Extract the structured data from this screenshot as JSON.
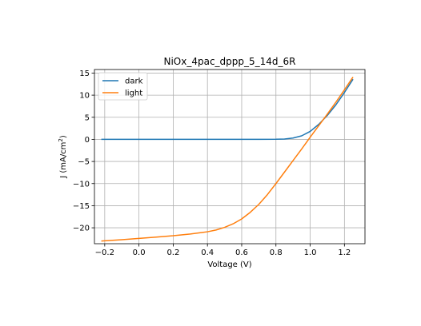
{
  "chart_data": {
    "type": "line",
    "title": "NiOx_4pac_dppp_5_14d_6R",
    "xlabel": "Voltage (V)",
    "ylabel_prefix": "J (mA/cm",
    "ylabel_sup": "2",
    "ylabel_suffix": ")",
    "xlim": [
      -0.26,
      1.32
    ],
    "ylim": [
      -23.6,
      15.8
    ],
    "xticks": [
      -0.2,
      0.0,
      0.2,
      0.4,
      0.6,
      0.8,
      1.0,
      1.2
    ],
    "xtick_labels": [
      "−0.2",
      "0.0",
      "0.2",
      "0.4",
      "0.6",
      "0.8",
      "1.0",
      "1.2"
    ],
    "yticks": [
      -20,
      -15,
      -10,
      -5,
      0,
      5,
      10,
      15
    ],
    "ytick_labels": [
      "−20",
      "−15",
      "−10",
      "−5",
      "0",
      "5",
      "10",
      "15"
    ],
    "grid": true,
    "legend_position": "top-left",
    "series": [
      {
        "name": "dark",
        "color": "#1f77b4",
        "x": [
          -0.22,
          0.0,
          0.2,
          0.4,
          0.6,
          0.7,
          0.8,
          0.85,
          0.9,
          0.95,
          1.0,
          1.05,
          1.1,
          1.15,
          1.2,
          1.25
        ],
        "y": [
          0.0,
          0.0,
          0.0,
          0.0,
          0.0,
          0.0,
          0.02,
          0.08,
          0.3,
          0.8,
          1.8,
          3.4,
          5.4,
          7.8,
          10.6,
          13.6
        ]
      },
      {
        "name": "light",
        "color": "#ff7f0e",
        "x": [
          -0.22,
          -0.1,
          0.0,
          0.1,
          0.2,
          0.3,
          0.4,
          0.45,
          0.5,
          0.55,
          0.6,
          0.65,
          0.7,
          0.75,
          0.8,
          0.85,
          0.9,
          0.95,
          1.0,
          1.05,
          1.1,
          1.15,
          1.2,
          1.25
        ],
        "y": [
          -23.0,
          -22.7,
          -22.4,
          -22.1,
          -21.8,
          -21.4,
          -20.9,
          -20.5,
          -19.9,
          -19.1,
          -18.0,
          -16.5,
          -14.7,
          -12.5,
          -10.0,
          -7.4,
          -4.8,
          -2.2,
          0.5,
          3.1,
          5.7,
          8.4,
          11.2,
          14.1
        ]
      }
    ]
  }
}
